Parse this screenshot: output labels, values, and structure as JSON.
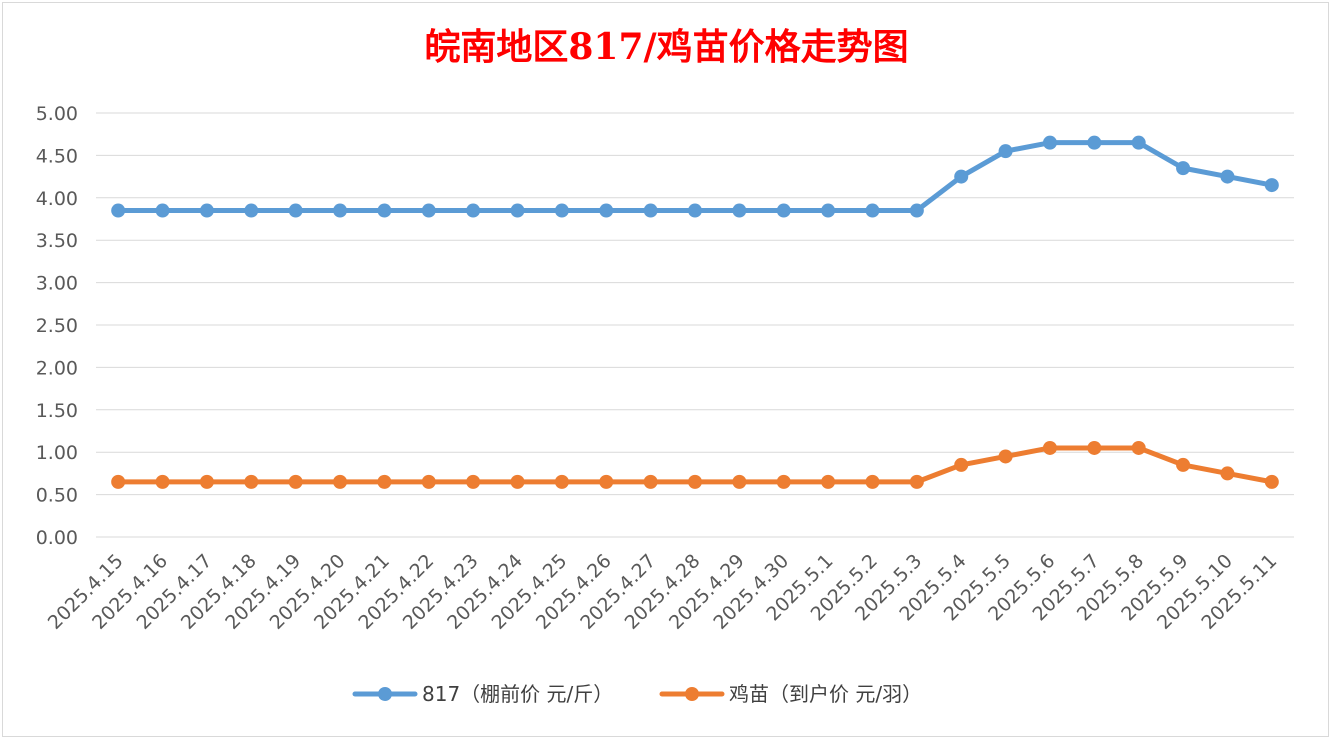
{
  "chart_data": {
    "type": "line",
    "title": "皖南地区817/鸡苗价格走势图",
    "xlabel": "",
    "ylabel": "",
    "ylim": [
      0,
      5
    ],
    "y_ticks": [
      "0.00",
      "0.50",
      "1.00",
      "1.50",
      "2.00",
      "2.50",
      "3.00",
      "3.50",
      "4.00",
      "4.50",
      "5.00"
    ],
    "categories": [
      "2025.4.15",
      "2025.4.16",
      "2025.4.17",
      "2025.4.18",
      "2025.4.19",
      "2025.4.20",
      "2025.4.21",
      "2025.4.22",
      "2025.4.23",
      "2025.4.24",
      "2025.4.25",
      "2025.4.26",
      "2025.4.27",
      "2025.4.28",
      "2025.4.29",
      "2025.4.30",
      "2025.5.1",
      "2025.5.2",
      "2025.5.3",
      "2025.5.4",
      "2025.5.5",
      "2025.5.6",
      "2025.5.7",
      "2025.5.8",
      "2025.5.9",
      "2025.5.10",
      "2025.5.11"
    ],
    "series": [
      {
        "name": "817（棚前价 元/斤）",
        "color": "#5b9bd5",
        "values": [
          3.85,
          3.85,
          3.85,
          3.85,
          3.85,
          3.85,
          3.85,
          3.85,
          3.85,
          3.85,
          3.85,
          3.85,
          3.85,
          3.85,
          3.85,
          3.85,
          3.85,
          3.85,
          3.85,
          4.25,
          4.55,
          4.65,
          4.65,
          4.65,
          4.35,
          4.25,
          4.15
        ]
      },
      {
        "name": "鸡苗（到户价 元/羽）",
        "color": "#ed7d31",
        "values": [
          0.65,
          0.65,
          0.65,
          0.65,
          0.65,
          0.65,
          0.65,
          0.65,
          0.65,
          0.65,
          0.65,
          0.65,
          0.65,
          0.65,
          0.65,
          0.65,
          0.65,
          0.65,
          0.65,
          0.85,
          0.95,
          1.05,
          1.05,
          1.05,
          0.85,
          0.75,
          0.65
        ]
      }
    ],
    "grid": true,
    "legend_position": "bottom"
  }
}
